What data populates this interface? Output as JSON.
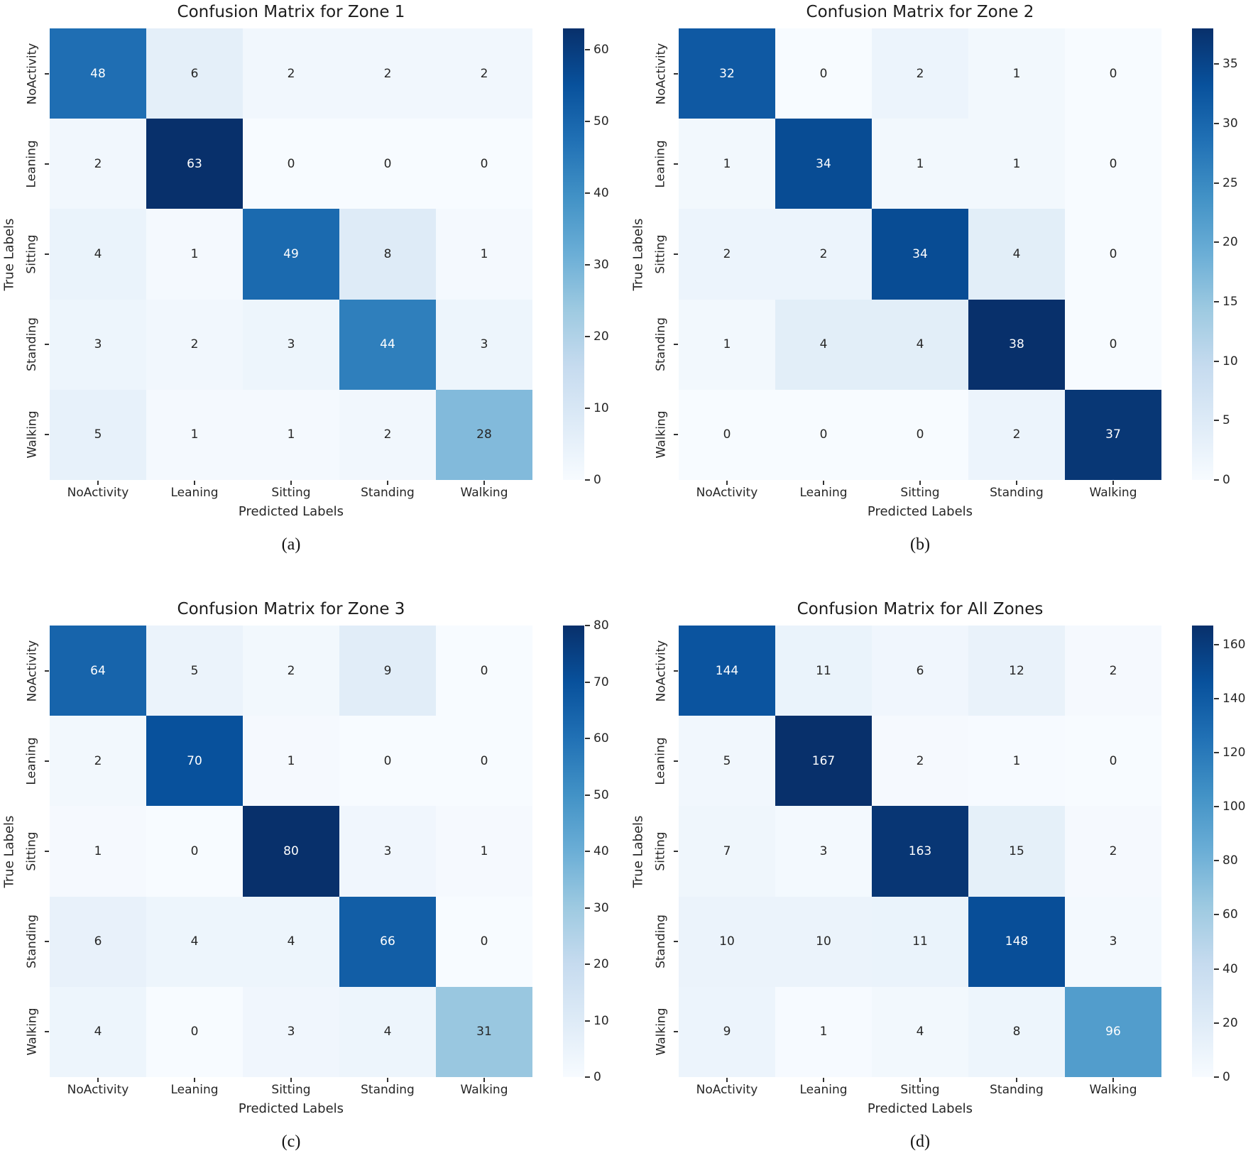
{
  "figure": {
    "background": "#ffffff",
    "panel_captions": [
      "(a)",
      "(b)",
      "(c)",
      "(d)"
    ]
  },
  "colors": {
    "colormap_name": "Blues",
    "colormap_stops": [
      "#f7fbff",
      "#deebf7",
      "#c6dbef",
      "#9ecae1",
      "#6baed6",
      "#4292c6",
      "#2171b5",
      "#08519c",
      "#08306b"
    ],
    "annot_dark": "#262626",
    "annot_light": "#ffffff",
    "axis_text": "#262626",
    "tick_mark": "#333333"
  },
  "chart_data": [
    {
      "type": "heatmap",
      "title": "Confusion Matrix for Zone 1",
      "caption": "(a)",
      "xlabel": "Predicted Labels",
      "ylabel": "True Labels",
      "categories": [
        "NoActivity",
        "Leaning",
        "Sitting",
        "Standing",
        "Walking"
      ],
      "matrix": [
        [
          48,
          6,
          2,
          2,
          2
        ],
        [
          2,
          63,
          0,
          0,
          0
        ],
        [
          4,
          1,
          49,
          8,
          1
        ],
        [
          3,
          2,
          3,
          44,
          3
        ],
        [
          5,
          1,
          1,
          2,
          28
        ]
      ],
      "vmin": 0,
      "vmax": 63,
      "colorbar_ticks": [
        0,
        10,
        20,
        30,
        40,
        50,
        60
      ],
      "legend_position": "right",
      "grid": false
    },
    {
      "type": "heatmap",
      "title": "Confusion Matrix for Zone 2",
      "caption": "(b)",
      "xlabel": "Predicted Labels",
      "ylabel": "True Labels",
      "categories": [
        "NoActivity",
        "Leaning",
        "Sitting",
        "Standing",
        "Walking"
      ],
      "matrix": [
        [
          32,
          0,
          2,
          1,
          0
        ],
        [
          1,
          34,
          1,
          1,
          0
        ],
        [
          2,
          2,
          34,
          4,
          0
        ],
        [
          1,
          4,
          4,
          38,
          0
        ],
        [
          0,
          0,
          0,
          2,
          37
        ]
      ],
      "vmin": 0,
      "vmax": 38,
      "colorbar_ticks": [
        0,
        5,
        10,
        15,
        20,
        25,
        30,
        35
      ],
      "legend_position": "right",
      "grid": false
    },
    {
      "type": "heatmap",
      "title": "Confusion Matrix for Zone 3",
      "caption": "(c)",
      "xlabel": "Predicted Labels",
      "ylabel": "True Labels",
      "categories": [
        "NoActivity",
        "Leaning",
        "Sitting",
        "Standing",
        "Walking"
      ],
      "matrix": [
        [
          64,
          5,
          2,
          9,
          0
        ],
        [
          2,
          70,
          1,
          0,
          0
        ],
        [
          1,
          0,
          80,
          3,
          1
        ],
        [
          6,
          4,
          4,
          66,
          0
        ],
        [
          4,
          0,
          3,
          4,
          31
        ]
      ],
      "vmin": 0,
      "vmax": 80,
      "colorbar_ticks": [
        0,
        10,
        20,
        30,
        40,
        50,
        60,
        70,
        80
      ],
      "legend_position": "right",
      "grid": false
    },
    {
      "type": "heatmap",
      "title": "Confusion Matrix for All Zones",
      "caption": "(d)",
      "xlabel": "Predicted Labels",
      "ylabel": "True Labels",
      "categories": [
        "NoActivity",
        "Leaning",
        "Sitting",
        "Standing",
        "Walking"
      ],
      "matrix": [
        [
          144,
          11,
          6,
          12,
          2
        ],
        [
          5,
          167,
          2,
          1,
          0
        ],
        [
          7,
          3,
          163,
          15,
          2
        ],
        [
          10,
          10,
          11,
          148,
          3
        ],
        [
          9,
          1,
          4,
          8,
          96
        ]
      ],
      "vmin": 0,
      "vmax": 167,
      "colorbar_ticks": [
        0,
        20,
        40,
        60,
        80,
        100,
        120,
        140,
        160
      ],
      "legend_position": "right",
      "grid": false
    }
  ]
}
